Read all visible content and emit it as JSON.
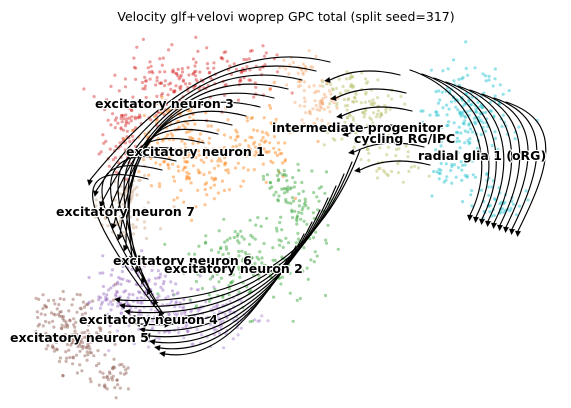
{
  "chart_data": {
    "type": "scatter",
    "title": "Velocity glf+velovi woprep GPC total (split seed=317)",
    "xlabel": "",
    "ylabel": "",
    "axes_visible": false,
    "grid": false,
    "legend": "on data",
    "overlay": "velocity streamlines",
    "clusters": [
      {
        "name": "excitatory neuron 3",
        "color": "#d62728"
      },
      {
        "name": "intermediate progenitor",
        "color": "#f5a46a"
      },
      {
        "name": "cycling RG/IPC",
        "color": "#b5bd61"
      },
      {
        "name": "radial glia 1 (oRG)",
        "color": "#17becf"
      },
      {
        "name": "excitatory neuron 1",
        "color": "#ff7f0e"
      },
      {
        "name": "excitatory neuron 7",
        "color": "#c9a27e"
      },
      {
        "name": "excitatory neuron 6",
        "color": "#9467bd"
      },
      {
        "name": "excitatory neuron 2",
        "color": "#2ca02c"
      },
      {
        "name": "excitatory neuron 4",
        "color": "#a87fd0"
      },
      {
        "name": "excitatory neuron 5",
        "color": "#8c564b"
      }
    ]
  }
}
